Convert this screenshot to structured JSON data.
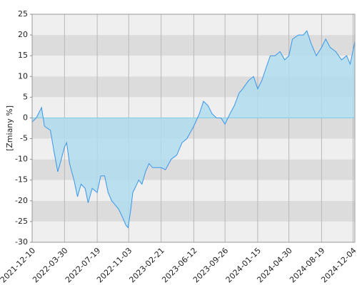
{
  "chart_data": {
    "type": "area",
    "y_label": "[Zmiany %]",
    "x": [
      "2021-12-10",
      "2021-12-24",
      "2022-01-11",
      "2022-01-21",
      "2022-02-10",
      "2022-02-22",
      "2022-03-07",
      "2022-03-19",
      "2022-03-30",
      "2022-04-06",
      "2022-04-16",
      "2022-05-01",
      "2022-05-13",
      "2022-05-25",
      "2022-06-08",
      "2022-06-18",
      "2022-07-02",
      "2022-07-19",
      "2022-07-31",
      "2022-08-13",
      "2022-08-25",
      "2022-09-06",
      "2022-09-18",
      "2022-09-30",
      "2022-10-13",
      "2022-10-25",
      "2022-11-01",
      "2022-11-10",
      "2022-11-17",
      "2022-11-24",
      "2022-12-07",
      "2022-12-18",
      "2022-12-30",
      "2023-01-11",
      "2023-01-23",
      "2023-02-21",
      "2023-03-08",
      "2023-03-27",
      "2023-04-15",
      "2023-05-03",
      "2023-05-20",
      "2023-06-12",
      "2023-07-01",
      "2023-07-15",
      "2023-07-30",
      "2023-08-13",
      "2023-08-28",
      "2023-09-12",
      "2023-09-26",
      "2023-10-13",
      "2023-10-28",
      "2023-11-13",
      "2023-11-25",
      "2023-12-15",
      "2024-01-01",
      "2024-01-15",
      "2024-01-29",
      "2024-02-12",
      "2024-02-27",
      "2024-03-14",
      "2024-03-31",
      "2024-04-16",
      "2024-04-30",
      "2024-05-12",
      "2024-06-01",
      "2024-06-18",
      "2024-06-30",
      "2024-07-14",
      "2024-08-01",
      "2024-08-19",
      "2024-09-02",
      "2024-09-17",
      "2024-10-06",
      "2024-10-26",
      "2024-11-12",
      "2024-11-24",
      "2024-12-06",
      "2024-12-10"
    ],
    "values": [
      -1,
      0,
      2.5,
      -2,
      -3,
      -8,
      -13,
      -10,
      -7,
      -6,
      -11,
      -15,
      -19,
      -16,
      -17,
      -20.5,
      -17,
      -18,
      -14,
      -14,
      -18,
      -20,
      -21,
      -22,
      -24,
      -26,
      -26.5,
      -22,
      -18,
      -17,
      -15,
      -16,
      -13,
      -11,
      -12,
      -12,
      -12.5,
      -10,
      -9,
      -6,
      -5,
      -2,
      1,
      4,
      3,
      1,
      0,
      0,
      -1.5,
      1,
      3,
      6,
      7,
      9,
      10,
      7,
      9,
      12,
      15,
      15,
      16,
      14,
      15,
      19,
      20,
      20,
      21,
      18,
      15,
      17,
      19,
      17,
      16,
      14,
      15,
      13,
      17,
      18.5
    ],
    "color": "#3a96e8",
    "fill_color": "#b0dcef",
    "xlim": [
      "2021-12-10",
      "2024-12-10"
    ],
    "xticks": [
      "2021-12-10",
      "2022-03-30",
      "2022-07-19",
      "2022-11-03",
      "2023-02-21",
      "2023-06-12",
      "2023-09-26",
      "2024-01-15",
      "2024-04-30",
      "2024-08-19",
      "2024-12-04"
    ],
    "ylim": [
      -30,
      25
    ],
    "yticks": [
      -30,
      -25,
      -20,
      -15,
      -10,
      -5,
      0,
      5,
      10,
      15,
      20,
      25
    ],
    "grid": true,
    "band_colors": [
      "#efefef",
      "#dcdcdc"
    ]
  }
}
